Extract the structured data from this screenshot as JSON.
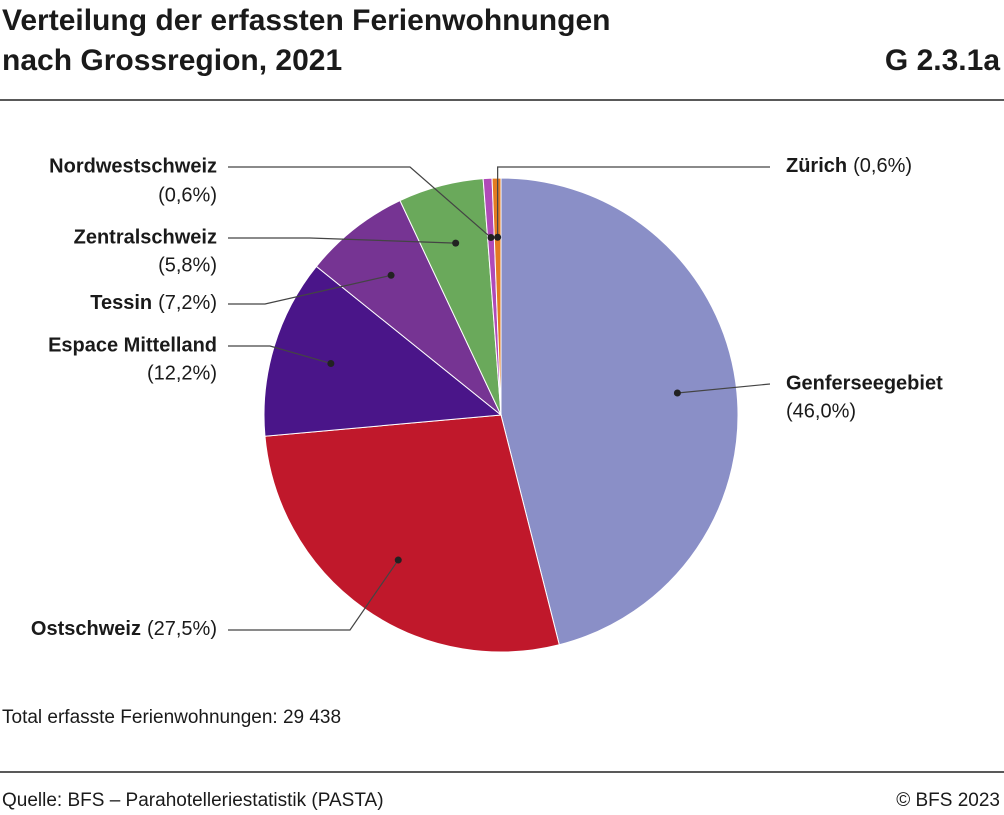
{
  "chart_data": {
    "type": "pie",
    "title": [
      "Verteilung der erfassten Ferienwohnungen",
      "nach Grossregion, 2021"
    ],
    "chart_id": "G 2.3.1a",
    "categories": [
      "Genferseegebiet",
      "Ostschweiz",
      "Espace Mittelland",
      "Tessin",
      "Zentralschweiz",
      "Nordwestschweiz",
      "Zürich"
    ],
    "values": [
      46.0,
      27.5,
      12.2,
      7.2,
      5.8,
      0.6,
      0.6
    ],
    "value_labels": [
      "(46,0%)",
      "(27,5%)",
      "(12,2%)",
      "(7,2%)",
      "(5,8%)",
      "(0,6%)",
      "(0,6%)"
    ],
    "colors": [
      "#8a8fc7",
      "#c0182b",
      "#4a1589",
      "#763493",
      "#6aa95b",
      "#b04ab8",
      "#e37b22"
    ],
    "note": "Total erfasste Ferienwohnungen: 29 438",
    "source": "Quelle: BFS – Parahotelleriestatistik (PASTA)",
    "copyright": "© BFS 2023"
  }
}
